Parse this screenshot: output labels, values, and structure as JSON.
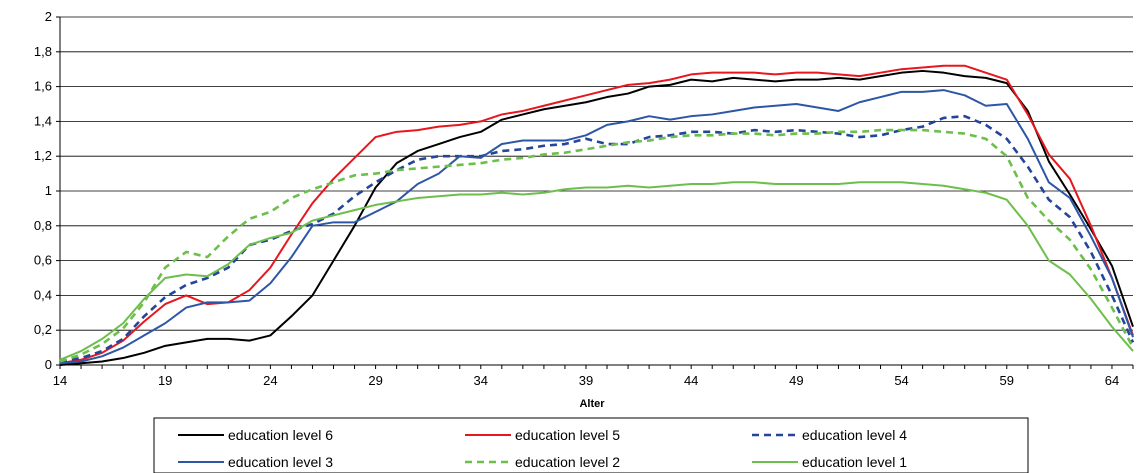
{
  "chart_data": {
    "type": "line",
    "title": "",
    "xlabel": "Alter",
    "ylabel": "",
    "xlim": [
      14,
      65
    ],
    "ylim": [
      0,
      2
    ],
    "x_ticks": [
      14,
      19,
      24,
      29,
      34,
      39,
      44,
      49,
      54,
      59,
      64
    ],
    "y_ticks": [
      "0",
      "0,2",
      "0,4",
      "0,6",
      "0,8",
      "1",
      "1,2",
      "1,4",
      "1,6",
      "1,8",
      "2"
    ],
    "y_tick_values": [
      0,
      0.2,
      0.4,
      0.6,
      0.8,
      1,
      1.2,
      1.4,
      1.6,
      1.8,
      2
    ],
    "grid": "horizontal",
    "legend_position": "bottom",
    "x": [
      14,
      15,
      16,
      17,
      18,
      19,
      20,
      21,
      22,
      23,
      24,
      25,
      26,
      27,
      28,
      29,
      30,
      31,
      32,
      33,
      34,
      35,
      36,
      37,
      38,
      39,
      40,
      41,
      42,
      43,
      44,
      45,
      46,
      47,
      48,
      49,
      50,
      51,
      52,
      53,
      54,
      55,
      56,
      57,
      58,
      59,
      60,
      61,
      62,
      63,
      64,
      65
    ],
    "series": [
      {
        "name": "education level 6",
        "color": "#000000",
        "dash": "solid",
        "values": [
          0,
          0.01,
          0.02,
          0.04,
          0.07,
          0.11,
          0.13,
          0.15,
          0.15,
          0.14,
          0.17,
          0.28,
          0.4,
          0.6,
          0.8,
          1.02,
          1.16,
          1.23,
          1.27,
          1.31,
          1.34,
          1.41,
          1.44,
          1.47,
          1.49,
          1.51,
          1.54,
          1.56,
          1.6,
          1.61,
          1.64,
          1.63,
          1.65,
          1.64,
          1.63,
          1.64,
          1.64,
          1.65,
          1.64,
          1.66,
          1.68,
          1.69,
          1.68,
          1.66,
          1.65,
          1.62,
          1.46,
          1.17,
          0.98,
          0.78,
          0.57,
          0.22
        ]
      },
      {
        "name": "education level 5",
        "color": "#e8161d",
        "dash": "solid",
        "values": [
          0.01,
          0.03,
          0.07,
          0.14,
          0.25,
          0.35,
          0.4,
          0.35,
          0.36,
          0.43,
          0.56,
          0.75,
          0.93,
          1.07,
          1.19,
          1.31,
          1.34,
          1.35,
          1.37,
          1.38,
          1.4,
          1.44,
          1.46,
          1.49,
          1.52,
          1.55,
          1.58,
          1.61,
          1.62,
          1.64,
          1.67,
          1.68,
          1.68,
          1.68,
          1.67,
          1.68,
          1.68,
          1.67,
          1.66,
          1.68,
          1.7,
          1.71,
          1.72,
          1.72,
          1.68,
          1.64,
          1.44,
          1.21,
          1.07,
          0.8,
          0.5,
          0.17
        ]
      },
      {
        "name": "education level 4",
        "color": "#24459a",
        "dash": "dash",
        "values": [
          0.02,
          0.04,
          0.08,
          0.15,
          0.28,
          0.39,
          0.46,
          0.5,
          0.56,
          0.69,
          0.72,
          0.77,
          0.81,
          0.87,
          0.97,
          1.05,
          1.12,
          1.18,
          1.2,
          1.2,
          1.2,
          1.23,
          1.24,
          1.26,
          1.27,
          1.3,
          1.27,
          1.27,
          1.31,
          1.32,
          1.34,
          1.34,
          1.33,
          1.35,
          1.34,
          1.35,
          1.34,
          1.33,
          1.31,
          1.32,
          1.35,
          1.37,
          1.42,
          1.43,
          1.38,
          1.3,
          1.14,
          0.95,
          0.85,
          0.65,
          0.4,
          0.13
        ]
      },
      {
        "name": "education level 3",
        "color": "#2e56a6",
        "dash": "solid",
        "values": [
          0.01,
          0.02,
          0.05,
          0.1,
          0.17,
          0.24,
          0.33,
          0.36,
          0.36,
          0.37,
          0.47,
          0.62,
          0.8,
          0.82,
          0.82,
          0.88,
          0.94,
          1.04,
          1.1,
          1.2,
          1.19,
          1.27,
          1.29,
          1.29,
          1.29,
          1.32,
          1.38,
          1.4,
          1.43,
          1.41,
          1.43,
          1.44,
          1.46,
          1.48,
          1.49,
          1.5,
          1.48,
          1.46,
          1.51,
          1.54,
          1.57,
          1.57,
          1.58,
          1.55,
          1.49,
          1.5,
          1.3,
          1.05,
          0.96,
          0.74,
          0.5,
          0.16
        ]
      },
      {
        "name": "education level 2",
        "color": "#6dbf4b",
        "dash": "dash",
        "values": [
          0.02,
          0.06,
          0.12,
          0.21,
          0.36,
          0.56,
          0.65,
          0.62,
          0.74,
          0.84,
          0.88,
          0.96,
          1.01,
          1.05,
          1.09,
          1.1,
          1.12,
          1.13,
          1.14,
          1.15,
          1.16,
          1.18,
          1.19,
          1.21,
          1.22,
          1.24,
          1.26,
          1.28,
          1.29,
          1.31,
          1.32,
          1.32,
          1.33,
          1.33,
          1.32,
          1.33,
          1.33,
          1.34,
          1.34,
          1.35,
          1.35,
          1.35,
          1.34,
          1.33,
          1.3,
          1.2,
          0.96,
          0.83,
          0.72,
          0.55,
          0.33,
          0.1
        ]
      },
      {
        "name": "education level 1",
        "color": "#6dbf4b",
        "dash": "solid",
        "values": [
          0.03,
          0.08,
          0.15,
          0.24,
          0.38,
          0.5,
          0.52,
          0.51,
          0.58,
          0.69,
          0.73,
          0.76,
          0.83,
          0.86,
          0.89,
          0.92,
          0.94,
          0.96,
          0.97,
          0.98,
          0.98,
          0.99,
          0.98,
          0.99,
          1.01,
          1.02,
          1.02,
          1.03,
          1.02,
          1.03,
          1.04,
          1.04,
          1.05,
          1.05,
          1.04,
          1.04,
          1.04,
          1.04,
          1.05,
          1.05,
          1.05,
          1.04,
          1.03,
          1.01,
          0.99,
          0.95,
          0.8,
          0.6,
          0.52,
          0.38,
          0.22,
          0.08
        ]
      }
    ]
  }
}
